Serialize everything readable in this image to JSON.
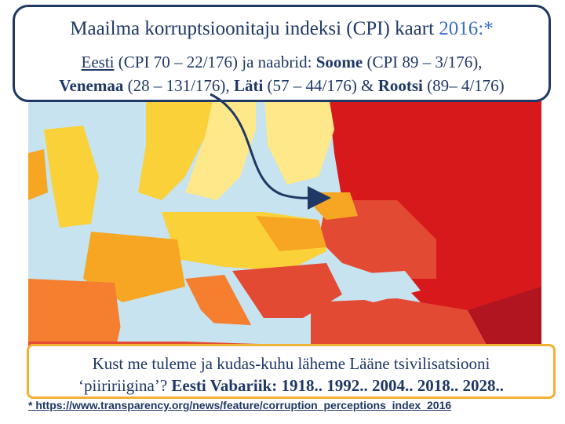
{
  "header": {
    "title_main": "Maailma korruptsioonitaju indeksi (CPI) kaart ",
    "title_year": "2016:*",
    "line1": {
      "estonia": "Eesti",
      "estonia_cpi": " (CPI 70 – 22/176) ja naabrid: ",
      "finland": "Soome",
      "finland_cpi": " (CPI 89 – 3/176),"
    },
    "line2": {
      "russia": "Venemaa",
      "russia_cpi": " (28 – 131/176), ",
      "latvia": "Läti",
      "latvia_cpi": " (57 – 44/176) & ",
      "sweden": "Rootsi",
      "sweden_cpi": " (89– 4/176)"
    }
  },
  "question": {
    "line1": "Kust me tuleme ja kudas-kuhu läheme Lääne tsivilisatsiooni",
    "line2_plain": "‘piiririigina’? ",
    "line2_bold": "Eesti Vabariik: 1918.. 1992.. 2004.. 2018.. 2028.."
  },
  "footnote": "* https://www.transparency.org/news/feature/corruption_perceptions_index_2016",
  "colors": {
    "navy": "#1f3864",
    "accent_blue": "#3b6fc4",
    "orange_border": "#f2b035",
    "sea": "#c6e3ef",
    "cpi_very_high_corruption": "#d7191c",
    "cpi_high_corruption": "#e34a33",
    "cpi_mid": "#f57e2f",
    "cpi_mid_low": "#f6a623",
    "cpi_low_corruption": "#fbd13a",
    "cpi_very_low_corruption": "#ffe88a"
  }
}
